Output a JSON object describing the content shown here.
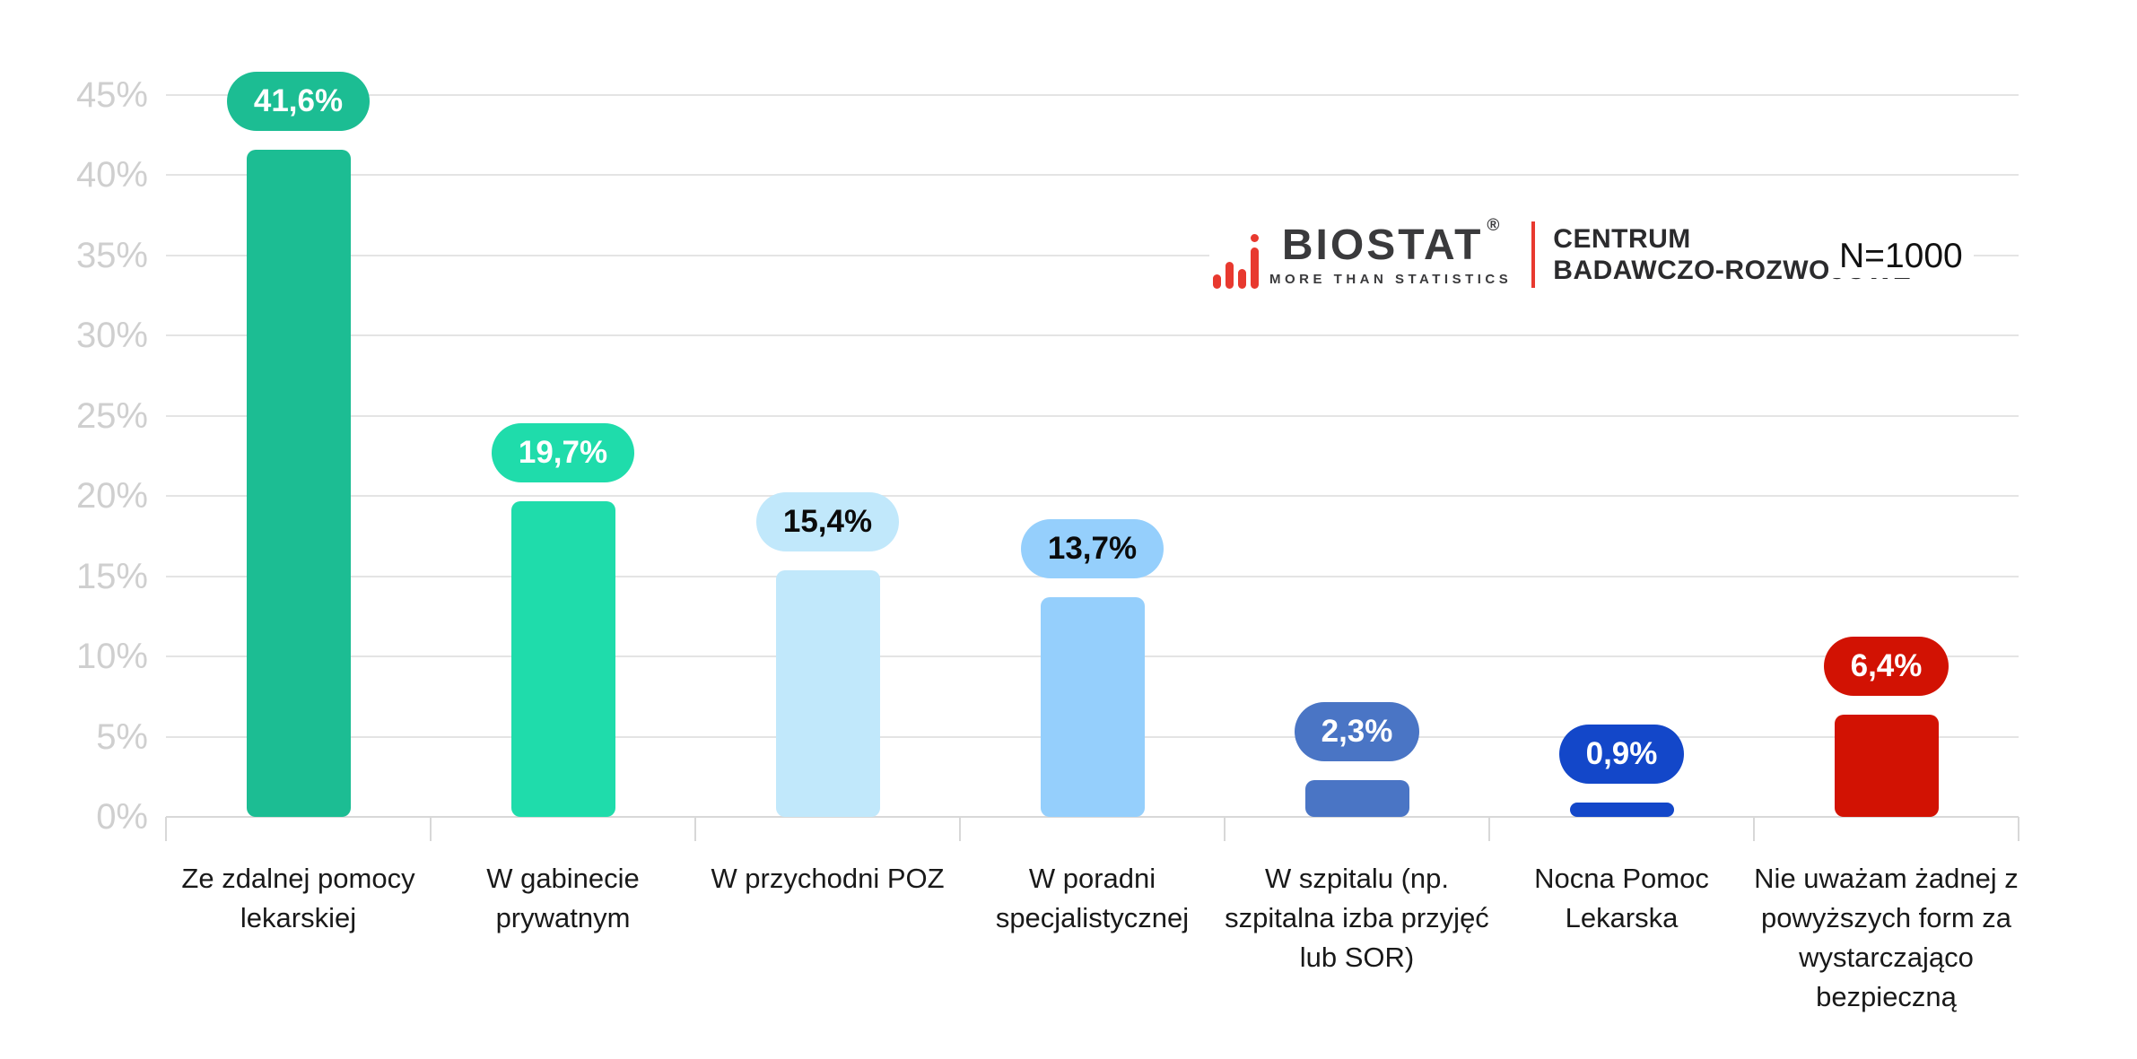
{
  "chart_data": {
    "type": "bar",
    "title": "",
    "xlabel": "",
    "ylabel": "",
    "ylim": [
      0,
      45
    ],
    "grid": true,
    "legend": "none",
    "yticks": [
      "0%",
      "5%",
      "10%",
      "15%",
      "20%",
      "25%",
      "30%",
      "35%",
      "40%",
      "45%"
    ],
    "categories": [
      "Ze zdalnej pomocy lekarskiej",
      "W gabinecie prywatnym",
      "W przychodni POZ",
      "W poradni specjalistycznej",
      "W szpitalu (np. szpitalna izba przyjęć lub SOR)",
      "Nocna Pomoc Lekarska",
      "Nie uważam żadnej z powyższych form za wystarczająco bezpieczną"
    ],
    "values": [
      41.6,
      19.7,
      15.4,
      13.7,
      2.3,
      0.9,
      6.4
    ],
    "value_labels": [
      "41,6%",
      "19,7%",
      "15,4%",
      "13,7%",
      "2,3%",
      "0,9%",
      "6,4%"
    ],
    "bar_colors": [
      "#1cbd93",
      "#1fdcab",
      "#c1e8fb",
      "#95cffc",
      "#4a75c5",
      "#1347c9",
      "#d21203"
    ],
    "label_text_colors": [
      "#ffffff",
      "#ffffff",
      "#0b0b0b",
      "#0b0b0b",
      "#ffffff",
      "#ffffff",
      "#ffffff"
    ]
  },
  "branding": {
    "logo_text": "BIOSTAT",
    "logo_registered": "®",
    "logo_tagline": "MORE THAN STATISTICS",
    "org_line1": "CENTRUM",
    "org_line2": "BADAWCZO-ROZWOJOWE",
    "sample_size": "N=1000",
    "logo_red": "#e8392f",
    "logo_dark": "#3a3a3c"
  }
}
